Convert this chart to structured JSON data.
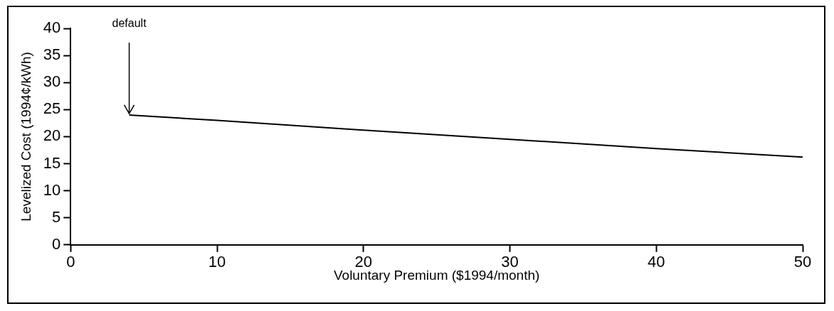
{
  "chart_data": {
    "type": "line",
    "xlabel": "Voluntary Premium ($1994/month)",
    "ylabel": "Levelized Cost (1994¢/kWh)",
    "x": [
      4,
      10,
      20,
      30,
      40,
      50
    ],
    "series": [
      {
        "color": "#000000",
        "values": [
          24,
          23,
          21.2,
          19.5,
          17.8,
          16.2
        ]
      }
    ],
    "xlim": [
      0,
      50
    ],
    "xticks": [
      0,
      10,
      20,
      30,
      40,
      50
    ],
    "ylim": [
      0,
      40
    ],
    "yticks": [
      0,
      5,
      10,
      15,
      20,
      25,
      30,
      35,
      40
    ],
    "grid": false,
    "legend": false,
    "marker": "none",
    "line_style": "solid",
    "annotations": [
      {
        "text": "default",
        "x": 4,
        "y": 24
      }
    ]
  }
}
